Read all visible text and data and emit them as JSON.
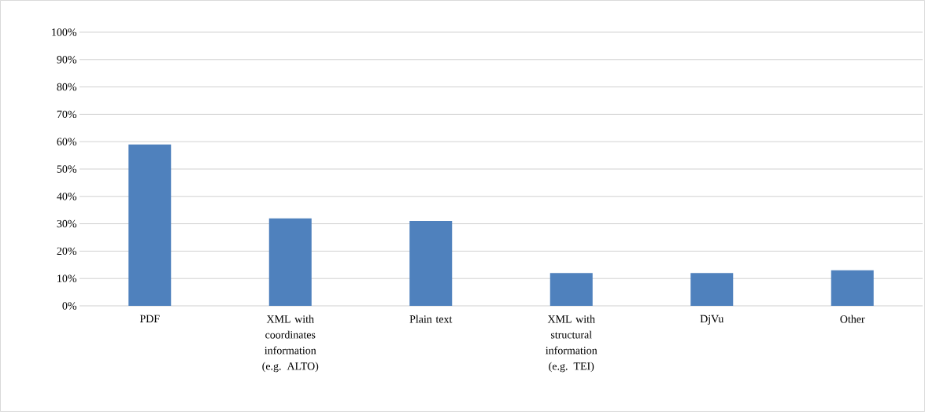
{
  "chart_data": {
    "type": "bar",
    "categories": [
      "PDF",
      "XML with coordinates information (e.g. ALTO)",
      "Plain text",
      "XML with structural information (e.g. TEI)",
      "DjVu",
      "Other"
    ],
    "values": [
      59,
      32,
      31,
      12,
      12,
      13
    ],
    "color": "#4f81bd",
    "ylim": [
      0,
      100
    ],
    "yticks": [
      {
        "value": 0,
        "label": "0%"
      },
      {
        "value": 10,
        "label": "10%"
      },
      {
        "value": 20,
        "label": "20%"
      },
      {
        "value": 30,
        "label": "30%"
      },
      {
        "value": 40,
        "label": "40%"
      },
      {
        "value": 50,
        "label": "50%"
      },
      {
        "value": 60,
        "label": "60%"
      },
      {
        "value": 70,
        "label": "70%"
      },
      {
        "value": 80,
        "label": "80%"
      },
      {
        "value": 90,
        "label": "90%"
      },
      {
        "value": 100,
        "label": "100%"
      }
    ],
    "grid": "y"
  }
}
